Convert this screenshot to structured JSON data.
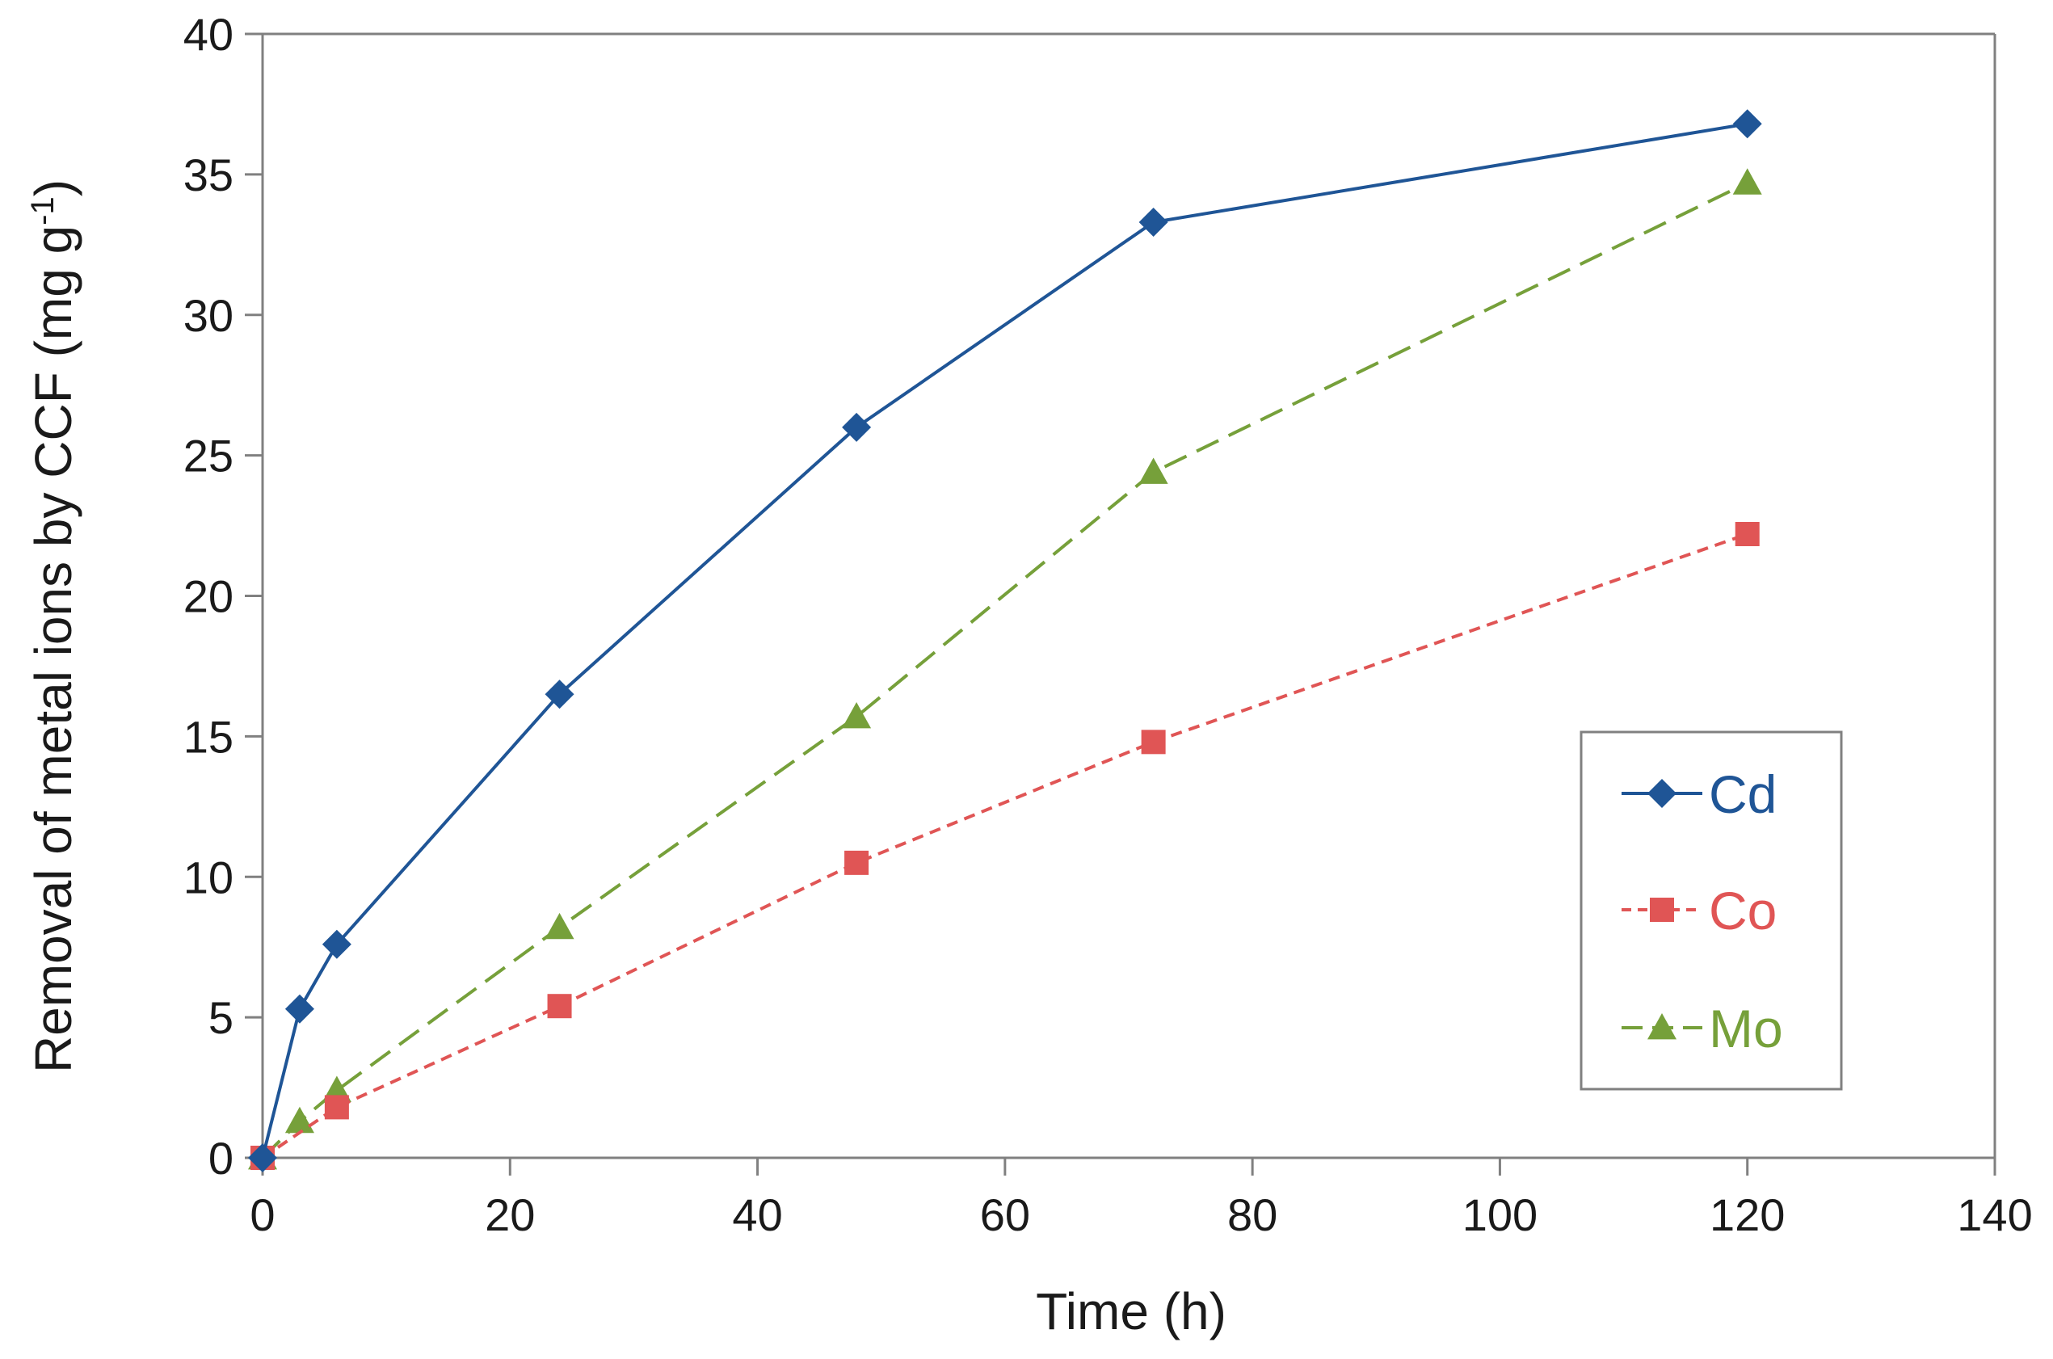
{
  "chart_data": {
    "type": "line",
    "title": "",
    "xlabel": "Time (h)",
    "ylabel": {
      "main": "Removal of metal ions by CCF (mg g",
      "superscript": "-1",
      "close": ")"
    },
    "xlim": [
      0,
      140
    ],
    "ylim": [
      0,
      40
    ],
    "xticks": [
      0,
      20,
      40,
      60,
      80,
      100,
      120,
      140
    ],
    "yticks": [
      0,
      5,
      10,
      15,
      20,
      25,
      30,
      35,
      40
    ],
    "x_tick_labels": [
      "0",
      "20",
      "40",
      "60",
      "80",
      "100",
      "120",
      "140"
    ],
    "y_tick_labels": [
      "0",
      "5",
      "10",
      "15",
      "20",
      "25",
      "30",
      "35",
      "40"
    ],
    "grid": false,
    "legend_position": "right",
    "series": [
      {
        "name": "Cd",
        "color": "#1f5596",
        "marker": "diamond",
        "line_style": "solid",
        "x": [
          0,
          3,
          6,
          24,
          48,
          72,
          120
        ],
        "y": [
          0,
          5.3,
          7.6,
          16.5,
          26.0,
          33.3,
          36.8
        ]
      },
      {
        "name": "Co",
        "color": "#e05555",
        "marker": "square",
        "line_style": "short-dash",
        "x": [
          0,
          6,
          24,
          48,
          72,
          120
        ],
        "y": [
          0,
          1.8,
          5.4,
          10.5,
          14.8,
          22.2
        ]
      },
      {
        "name": "Mo",
        "color": "#76a03a",
        "marker": "triangle",
        "line_style": "long-dash",
        "x": [
          0,
          3,
          6,
          24,
          48,
          72,
          120
        ],
        "y": [
          0,
          1.3,
          2.4,
          8.2,
          15.7,
          24.4,
          34.7
        ]
      }
    ]
  }
}
